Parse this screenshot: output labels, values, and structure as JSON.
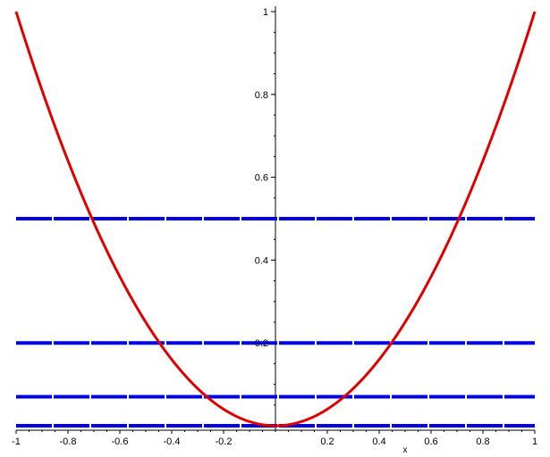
{
  "chart_data": {
    "type": "line",
    "xlabel": "x",
    "ylabel": "",
    "xlim": [
      -1,
      1
    ],
    "ylim": [
      0,
      1
    ],
    "x_ticks": [
      -1,
      -0.8,
      -0.6,
      -0.4,
      -0.2,
      0.2,
      0.4,
      0.6,
      0.8,
      1
    ],
    "x_tick_labels": [
      "-1",
      "-0.8",
      "-0.6",
      "-0.4",
      "-0.2",
      "0.2",
      "0.4",
      "0.6",
      "0.8",
      "1"
    ],
    "y_ticks": [
      0.2,
      0.4,
      0.6,
      0.8,
      1
    ],
    "y_tick_labels": [
      "0.2",
      "0.4",
      "0.6",
      "0.8",
      "1"
    ],
    "grid": false,
    "legend": "none",
    "series": [
      {
        "color": "#e00000",
        "x": [
          -1,
          -0.9,
          -0.8,
          -0.7,
          -0.6,
          -0.5,
          -0.4,
          -0.3,
          -0.2,
          -0.1,
          0,
          0.1,
          0.2,
          0.3,
          0.4,
          0.5,
          0.6,
          0.7,
          0.8,
          0.9,
          1
        ],
        "y": [
          1,
          0.81,
          0.64,
          0.49,
          0.36,
          0.25,
          0.16,
          0.09,
          0.04,
          0.01,
          0,
          0.01,
          0.04,
          0.09,
          0.16,
          0.25,
          0.36,
          0.49,
          0.64,
          0.81,
          1
        ]
      },
      {
        "color": "#0000e0",
        "x": [
          -1,
          1
        ],
        "y": [
          0.5,
          0.5
        ]
      },
      {
        "color": "#0000e0",
        "x": [
          -1,
          1
        ],
        "y": [
          0.2,
          0.2
        ]
      },
      {
        "color": "#0000e0",
        "x": [
          -1,
          1
        ],
        "y": [
          0.07,
          0.07
        ]
      },
      {
        "color": "#0000e0",
        "x": [
          -1,
          1
        ],
        "y": [
          0,
          0
        ]
      }
    ]
  }
}
